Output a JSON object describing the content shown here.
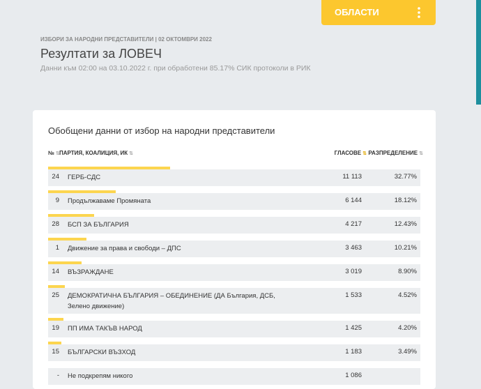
{
  "nav": {
    "button": "ОБЛАСТИ"
  },
  "header": {
    "kicker": "ИЗБОРИ ЗА НАРОДНИ ПРЕДСТАВИТЕЛИ | 02 ОКТОМВРИ 2022",
    "title": "Резултати за ЛОВЕЧ",
    "subtitle": "Данни към 02:00 на 03.10.2022 г. при обработени 85.17% СИК протоколи в РИК"
  },
  "card": {
    "title": "Обобщени данни от избор на народни представители",
    "columns": [
      "№",
      "ПАРТИЯ, КОАЛИЦИЯ, ИК",
      "ГЛАСОВЕ",
      "РАЗПРЕДЕЛЕНИЕ"
    ],
    "rows": [
      {
        "number": "24",
        "party": "ГЕРБ-СДС",
        "votes": "11 113",
        "share": "32.77%"
      },
      {
        "number": "9",
        "party": "Продължаваме Промяната",
        "votes": "6 144",
        "share": "18.12%"
      },
      {
        "number": "28",
        "party": "БСП ЗА БЪЛГАРИЯ",
        "votes": "4 217",
        "share": "12.43%"
      },
      {
        "number": "1",
        "party": "Движение за права и свободи – ДПС",
        "votes": "3 463",
        "share": "10.21%"
      },
      {
        "number": "14",
        "party": "ВЪЗРАЖДАНЕ",
        "votes": "3 019",
        "share": "8.90%"
      },
      {
        "number": "25",
        "party": "ДЕМОКРАТИЧНА БЪЛГАРИЯ – ОБЕДИНЕНИЕ (ДА България, ДСБ, Зелено движение)",
        "votes": "1 533",
        "share": "4.52%"
      },
      {
        "number": "19",
        "party": "ПП ИМА ТАКЪВ НАРОД",
        "votes": "1 425",
        "share": "4.20%"
      },
      {
        "number": "15",
        "party": "БЪЛГАРСКИ ВЪЗХОД",
        "votes": "1 183",
        "share": "3.49%"
      },
      {
        "number": "-",
        "party": "Не подкрепям никого",
        "votes": "1 086"
      }
    ]
  }
}
